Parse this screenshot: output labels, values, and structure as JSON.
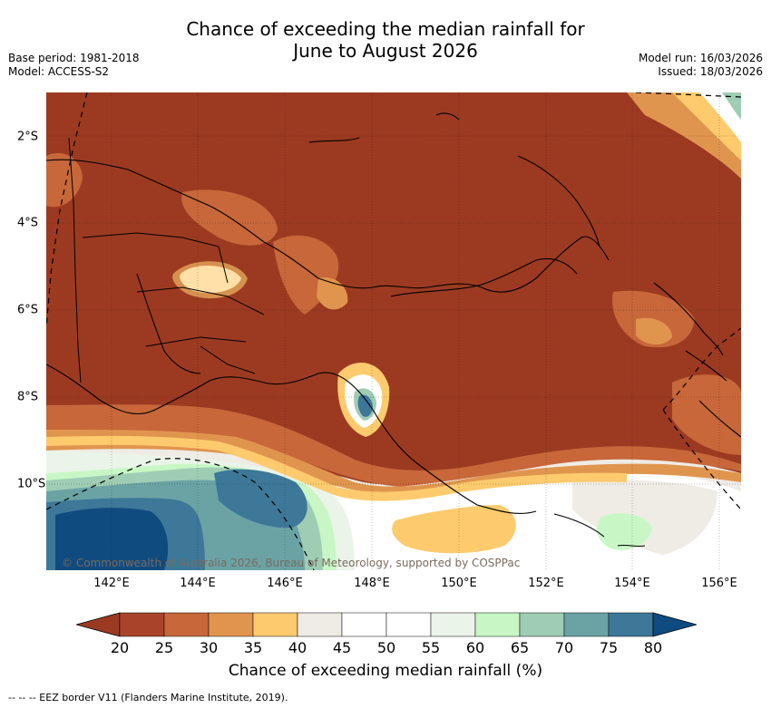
{
  "title": {
    "line1": "Chance of exceeding the median rainfall for",
    "line2": "June to August 2026"
  },
  "meta": {
    "base_period": "Base period: 1981-2018",
    "model": "Model: ACCESS-S2",
    "model_run": "Model run: 16/03/2026",
    "issued": "Issued: 18/03/2026"
  },
  "axes": {
    "x_ticks": [
      "142°E",
      "144°E",
      "146°E",
      "148°E",
      "150°E",
      "152°E",
      "154°E",
      "156°E"
    ],
    "y_ticks": [
      "2°S",
      "4°S",
      "6°S",
      "8°S",
      "10°S"
    ]
  },
  "copyright": "© Commonwealth of Australia 2026, Bureau of Meteorology, supported by COSPPac",
  "colorbar": {
    "labels": [
      "20",
      "25",
      "30",
      "35",
      "40",
      "45",
      "50",
      "55",
      "60",
      "65",
      "70",
      "75",
      "80"
    ],
    "colors": [
      "#9c3a21",
      "#a9442a",
      "#c7673a",
      "#e0954e",
      "#fdcb6e",
      "#efebe5",
      "#ffffff",
      "#ffffff",
      "#eaf4e8",
      "#c8f7c5",
      "#9fcdb4",
      "#6ba3a5",
      "#3d7899",
      "#104b7f"
    ],
    "title": "Chance of exceeding median rainfall (%)"
  },
  "footer": "--  --  -- EEZ border V11 (Flanders Marine Institute, 2019).",
  "palette": {
    "dark_brown": "#9c3a21",
    "mid_brown": "#c7673a",
    "orange": "#e0954e",
    "yellow": "#fdcb6e",
    "offwhite": "#efebe5",
    "light_green": "#c8f7c5",
    "sea_green": "#9fcdb4",
    "teal": "#6ba3a5",
    "blue": "#3d7899",
    "dark_blue": "#104b7f"
  }
}
